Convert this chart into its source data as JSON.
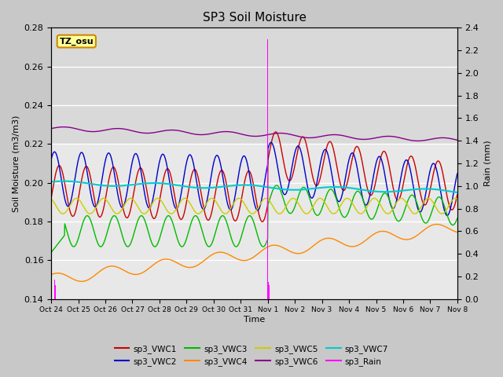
{
  "title": "SP3 Soil Moisture",
  "xlabel": "Time",
  "ylabel_left": "Soil Moisture (m3/m3)",
  "ylabel_right": "Rain (mm)",
  "ylim_left": [
    0.14,
    0.28
  ],
  "ylim_right": [
    0.0,
    2.4
  ],
  "tick_labels": [
    "Oct 24",
    "Oct 25",
    "Oct 26",
    "Oct 27",
    "Oct 28",
    "Oct 29",
    "Oct 30",
    "Oct 31",
    "Nov 1",
    "Nov 2",
    "Nov 3",
    "Nov 4",
    "Nov 5",
    "Nov 6",
    "Nov 7",
    "Nov 8"
  ],
  "fig_bg_color": "#c8c8c8",
  "plot_bg_upper": "#dcdcdc",
  "plot_bg_lower": "#e8e8e8",
  "tz_label": "TZ_osu",
  "tz_box_color": "#ffff99",
  "tz_box_edge": "#cc8800",
  "VWC1_color": "#cc0000",
  "VWC2_color": "#0000cc",
  "VWC3_color": "#00bb00",
  "VWC4_color": "#ff8800",
  "VWC5_color": "#cccc00",
  "VWC6_color": "#880088",
  "VWC7_color": "#00cccc",
  "Rain_color": "#ff00ff",
  "legend_labels": [
    "sp3_VWC1",
    "sp3_VWC2",
    "sp3_VWC3",
    "sp3_VWC4",
    "sp3_VWC5",
    "sp3_VWC6",
    "sp3_VWC7",
    "sp3_Rain"
  ]
}
